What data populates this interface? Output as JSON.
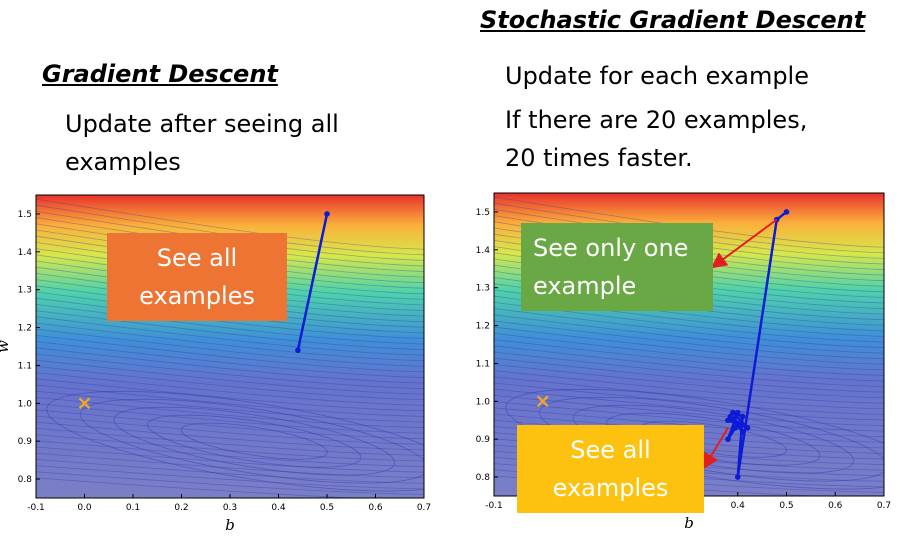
{
  "left": {
    "title": "Gradient Descent",
    "description_line1": "Update after seeing all",
    "description_line2": "examples",
    "callout_line1": "See all",
    "callout_line2": "examples",
    "callout_color": "#ee7434",
    "path_color": "#0b1bd6",
    "marker_color": "#f5a623"
  },
  "right": {
    "title": "Stochastic Gradient Descent",
    "description_line1": "Update for each example",
    "description_line2": "If there are 20 examples,",
    "description_line3": "20 times faster.",
    "callout_top_line1": "See only one",
    "callout_top_line2": "example",
    "callout_top_color": "#6aa846",
    "callout_bottom_line1": "See all",
    "callout_bottom_line2": "examples",
    "callout_bottom_color": "#fdc20f",
    "arrow_color": "#e02020",
    "path_color": "#0b1bd6",
    "marker_color": "#f5a623"
  },
  "chart_data": [
    {
      "type": "scatter",
      "title": "",
      "xlabel": "b",
      "ylabel": "w",
      "xlim": [
        -0.1,
        0.7
      ],
      "ylim": [
        0.75,
        1.55
      ],
      "x_ticks": [
        "-0.1",
        "0.0",
        "0.1",
        "0.2",
        "0.3",
        "0.4",
        "0.5",
        "0.6",
        "0.7"
      ],
      "y_ticks": [
        "0.8",
        "0.9",
        "1.0",
        "1.1",
        "1.2",
        "1.3",
        "1.4",
        "1.5"
      ],
      "background": "loss contour map",
      "target": {
        "x": 0.0,
        "y": 1.0
      },
      "series": [
        {
          "x": [
            0.5,
            0.44
          ],
          "y": [
            1.5,
            1.14
          ]
        }
      ]
    },
    {
      "type": "scatter",
      "title": "",
      "xlabel": "b",
      "ylabel": "",
      "xlim": [
        -0.1,
        0.7
      ],
      "ylim": [
        0.75,
        1.55
      ],
      "x_ticks": [
        "-0.1",
        "0.4",
        "0.5",
        "0.6",
        "0.7"
      ],
      "y_ticks": [
        "0.8",
        "0.9",
        "1.0",
        "1.1",
        "1.2",
        "1.3",
        "1.4",
        "1.5"
      ],
      "background": "loss contour map",
      "target": {
        "x": 0.0,
        "y": 1.0
      },
      "series": [
        {
          "x": [
            0.5,
            0.48,
            0.4,
            0.41,
            0.39,
            0.42,
            0.38,
            0.405,
            0.385,
            0.41,
            0.39,
            0.4,
            0.38,
            0.395
          ],
          "y": [
            1.5,
            1.48,
            0.8,
            0.96,
            0.97,
            0.93,
            0.95,
            0.94,
            0.96,
            0.92,
            0.95,
            0.97,
            0.9,
            0.93
          ]
        }
      ]
    }
  ]
}
